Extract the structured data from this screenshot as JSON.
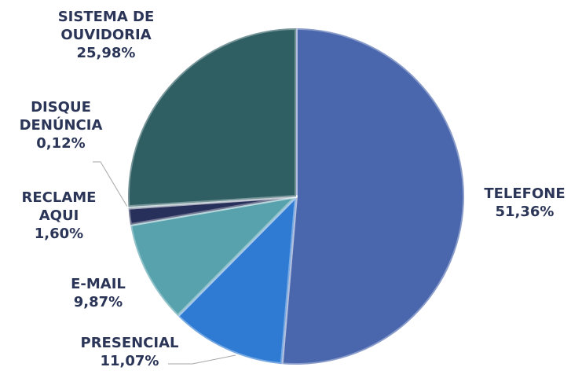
{
  "chart_data": {
    "type": "pie",
    "categories": [
      "TELEFONE",
      "PRESENCIAL",
      "E-MAIL",
      "RECLAME AQUI",
      "DISQUE DENÚNCIA",
      "SISTEMA DE OUVIDORIA"
    ],
    "values": [
      51.36,
      11.07,
      9.87,
      1.6,
      0.12,
      25.98
    ],
    "value_labels": [
      "51,36%",
      "11,07%",
      "9,87%",
      "1,60%",
      "0,12%",
      "25,98%"
    ],
    "colors": [
      "#4a66ad",
      "#2f7bd3",
      "#57a2ac",
      "#27305a",
      "#7fa7b0",
      "#2f5e63"
    ]
  }
}
